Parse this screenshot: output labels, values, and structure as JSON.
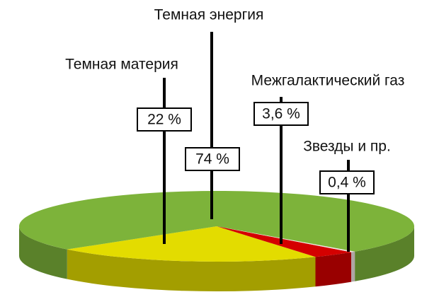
{
  "chart_data": {
    "type": "pie3d",
    "categories": [
      "Темная материя",
      "Межгалактический газ",
      "Звезды и пр.",
      "Темная энергия"
    ],
    "values": [
      22,
      3.6,
      0.4,
      74
    ],
    "value_labels": [
      "22 %",
      "3,6 %",
      "0,4 %",
      "74 %"
    ],
    "colors": [
      "#e3dc00",
      "#d40000",
      "#f2e4e4",
      "#7db33a"
    ]
  }
}
